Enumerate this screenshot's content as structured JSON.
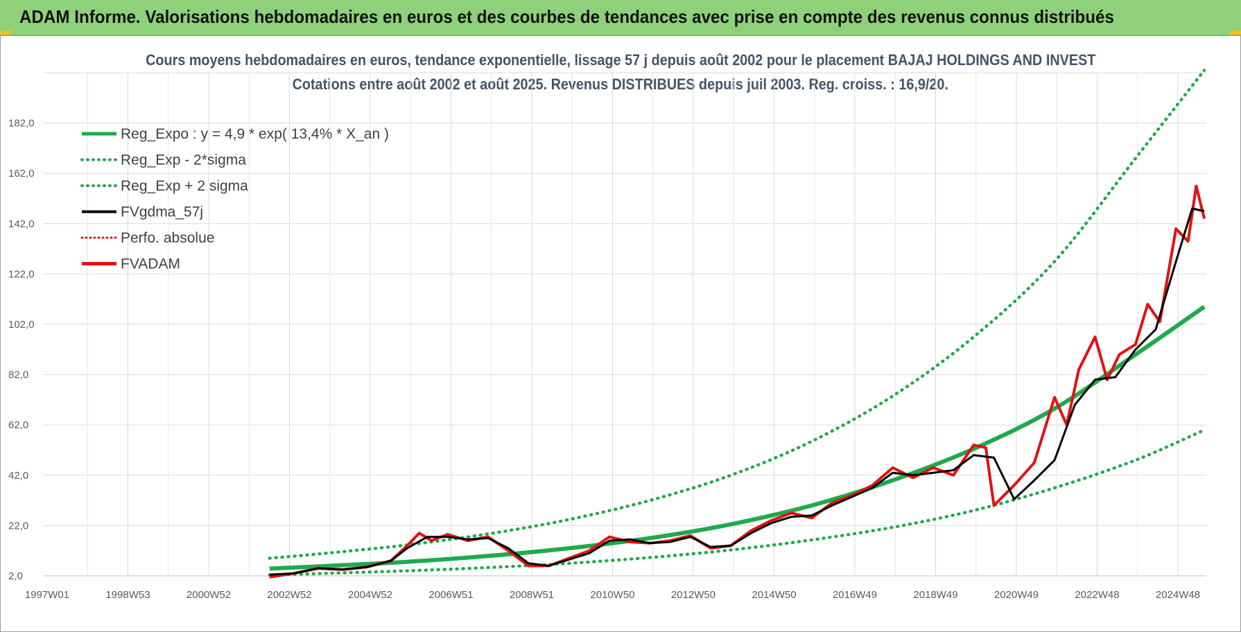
{
  "banner": {
    "title": "ADAM Informe. Valorisations hebdomadaires en euros et des courbes de tendances avec prise en compte des revenus connus distribués"
  },
  "colors": {
    "banner_bg": "#8fd07a",
    "reg_expo": "#1faa4b",
    "fvgdma": "#000000",
    "fvadam": "#e3110f",
    "perfo": "#e3110f",
    "title_text": "#44546a"
  },
  "chart_data": {
    "type": "line",
    "title": "Cours moyens hebdomadaires en euros, tendance exponentielle, lissage 57 j depuis août 2002 pour le placement BAJAJ HOLDINGS AND INVEST",
    "subtitle": "Cotations entre août 2002 et août 2025. Revenus DISTRIBUES depuis juil 2003. Reg. croiss. : 16,9/20.",
    "xlabel": "",
    "ylabel": "",
    "ylim": [
      2,
      202
    ],
    "y_ticks": [
      "2,0",
      "22,0",
      "42,0",
      "62,0",
      "82,0",
      "102,0",
      "122,0",
      "142,0",
      "162,0",
      "182,0"
    ],
    "x_ticks": [
      "1997W01",
      "1998W53",
      "2000W52",
      "2002W52",
      "2004W52",
      "2006W51",
      "2008W51",
      "2010W50",
      "2012W50",
      "2014W50",
      "2016W49",
      "2018W49",
      "2020W49",
      "2022W48",
      "2024W48"
    ],
    "xlim": [
      1997.0,
      2025.75
    ],
    "grid": true,
    "legend_position": "top-left",
    "legend": [
      {
        "label": "Reg_Expo : y = 4,9 * exp( 13,4% *  X_an )",
        "style": "solid-thick",
        "color": "#1faa4b"
      },
      {
        "label": "Reg_Exp - 2*sigma",
        "style": "dotted",
        "color": "#1faa4b"
      },
      {
        "label": "Reg_Exp + 2 sigma",
        "style": "dotted",
        "color": "#1faa4b"
      },
      {
        "label": "FVgdma_57j",
        "style": "solid",
        "color": "#000000"
      },
      {
        "label": "Perfo. absolue",
        "style": "dotted",
        "color": "#e3110f"
      },
      {
        "label": "FVADAM",
        "style": "solid-thick",
        "color": "#e3110f"
      }
    ],
    "series": [
      {
        "name": "Reg_Expo : y = 4,9 * exp( 13,4% *  X_an )",
        "x": [
          2002.6,
          2004,
          2006,
          2008,
          2010,
          2012,
          2014,
          2016,
          2018,
          2020,
          2022,
          2024,
          2025.7
        ],
        "values": [
          4.9,
          5.9,
          7.6,
          9.9,
          13.0,
          17.0,
          22.5,
          30.0,
          40.0,
          52.5,
          68.5,
          90.0,
          109.0
        ]
      },
      {
        "name": "Reg_Exp - 2*sigma",
        "x": [
          2002.6,
          2004,
          2006,
          2008,
          2010,
          2012,
          2014,
          2016,
          2018,
          2020,
          2022,
          2024,
          2025.7
        ],
        "values": [
          2.3,
          3.0,
          4.0,
          5.3,
          7.0,
          9.3,
          12.3,
          16.3,
          21.3,
          28.0,
          37.0,
          48.0,
          60.0
        ]
      },
      {
        "name": "Reg_Exp + 2 sigma",
        "x": [
          2002.6,
          2004,
          2006,
          2008,
          2010,
          2012,
          2014,
          2016,
          2018,
          2020,
          2022,
          2024,
          2025.7
        ],
        "values": [
          9.0,
          11.0,
          14.3,
          18.7,
          24.4,
          32.0,
          42.0,
          55.5,
          73.5,
          97.0,
          127.0,
          168.0,
          203.0
        ]
      },
      {
        "name": "FVgdma_57j",
        "x": [
          2002.6,
          2003.2,
          2003.8,
          2004.4,
          2005.0,
          2005.6,
          2006.0,
          2006.5,
          2007.0,
          2007.5,
          2008.0,
          2008.5,
          2009.0,
          2009.5,
          2010.0,
          2010.5,
          2011.0,
          2011.5,
          2012.0,
          2012.5,
          2013.0,
          2013.5,
          2014.0,
          2014.5,
          2015.0,
          2015.5,
          2016.0,
          2016.5,
          2017.0,
          2017.5,
          2018.0,
          2018.5,
          2019.0,
          2019.5,
          2020.0,
          2020.5,
          2021.0,
          2021.5,
          2022.0,
          2022.5,
          2023.0,
          2023.5,
          2024.0,
          2024.5,
          2025.0,
          2025.4,
          2025.7
        ],
        "values": [
          2.5,
          3.0,
          5.0,
          4.5,
          5.5,
          8.0,
          13.0,
          17.5,
          17.5,
          16.5,
          17.0,
          13.0,
          7.0,
          6.0,
          8.5,
          11.0,
          16.0,
          16.5,
          15.0,
          15.5,
          17.5,
          13.5,
          14.0,
          19.0,
          23.0,
          25.5,
          26.0,
          30.0,
          33.5,
          37.0,
          43.0,
          42.0,
          43.0,
          44.0,
          50.0,
          49.0,
          32.5,
          40.0,
          48.0,
          70.0,
          80.0,
          81.0,
          92.0,
          100.0,
          127.0,
          148.0,
          147.0
        ]
      },
      {
        "name": "FVADAM",
        "x": [
          2002.6,
          2003.2,
          2003.8,
          2004.4,
          2005.0,
          2005.6,
          2006.0,
          2006.3,
          2006.6,
          2007.0,
          2007.5,
          2008.0,
          2008.5,
          2009.0,
          2009.5,
          2010.0,
          2010.5,
          2011.0,
          2011.5,
          2012.0,
          2012.5,
          2013.0,
          2013.5,
          2014.0,
          2014.5,
          2015.0,
          2015.5,
          2016.0,
          2016.5,
          2017.0,
          2017.5,
          2018.0,
          2018.5,
          2019.0,
          2019.5,
          2020.0,
          2020.3,
          2020.5,
          2021.0,
          2021.5,
          2022.0,
          2022.3,
          2022.6,
          2023.0,
          2023.3,
          2023.6,
          2024.0,
          2024.3,
          2024.6,
          2025.0,
          2025.3,
          2025.5,
          2025.7
        ],
        "values": [
          1.5,
          3.0,
          5.0,
          4.5,
          5.5,
          8.0,
          14.0,
          19.0,
          16.0,
          18.5,
          16.0,
          17.5,
          12.0,
          6.0,
          6.0,
          9.0,
          12.0,
          17.5,
          15.5,
          15.0,
          16.0,
          18.0,
          13.0,
          14.0,
          20.0,
          24.0,
          27.0,
          25.0,
          31.0,
          34.0,
          38.0,
          45.0,
          41.0,
          45.0,
          42.0,
          54.0,
          53.0,
          30.0,
          38.0,
          47.0,
          73.0,
          62.0,
          84.0,
          97.0,
          80.0,
          90.0,
          94.0,
          110.0,
          103.0,
          140.0,
          135.0,
          157.0,
          144.0
        ]
      }
    ]
  }
}
